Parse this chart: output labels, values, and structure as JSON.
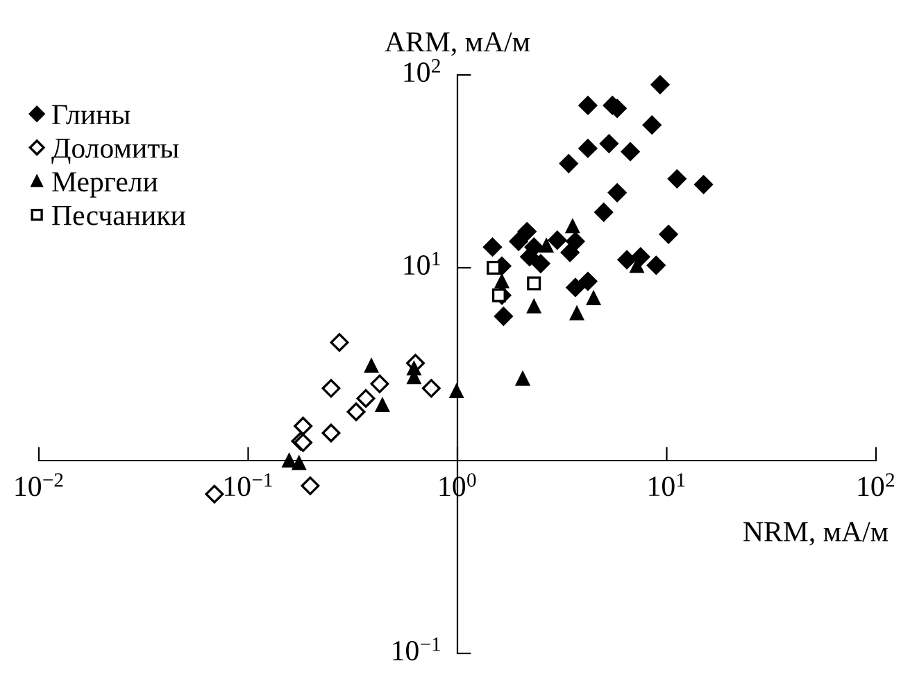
{
  "chart_data": {
    "type": "scatter",
    "xlabel": "NRM, мА/м",
    "ylabel": "ARM, мА/м",
    "log": "xy",
    "xlim": [
      0.01,
      100
    ],
    "ylim": [
      0.1,
      100
    ],
    "xticks": [
      {
        "value": 0.01,
        "label": "10$^{−2}$"
      },
      {
        "value": 0.1,
        "label": "10$^{−1}$"
      },
      {
        "value": 1,
        "label": "10$^{0}$"
      },
      {
        "value": 10,
        "label": "10$^{1}$"
      },
      {
        "value": 100,
        "label": "10$^{2}$"
      }
    ],
    "yticks": [
      {
        "value": 0.1,
        "label": "10$^{−1}$"
      },
      {
        "value": 10,
        "label": "10$^{1}$"
      },
      {
        "value": 100,
        "label": "10$^{2}$"
      }
    ],
    "grid": false,
    "legend": "top left",
    "series": [
      {
        "name": "Глины",
        "color": "#000000",
        "marker": "diamond",
        "x": [
          9.3,
          4.2,
          5.5,
          5.8,
          8.5,
          4.2,
          5.3,
          6.7,
          3.4,
          11.2,
          15,
          5.8,
          5.0,
          10.2,
          1.47,
          2.15,
          1.96,
          2.32,
          2.21,
          2.5,
          3.0,
          3.45,
          3.66,
          6.45,
          7.5,
          8.9,
          1.63,
          4.2,
          3.66,
          1.63,
          1.66
        ],
        "values": [
          89,
          69.5,
          69.5,
          67,
          55,
          41.6,
          44,
          40,
          34.7,
          28.9,
          27,
          24.5,
          19.4,
          14.9,
          12.8,
          15.4,
          13.7,
          12.8,
          11.4,
          10.5,
          13.9,
          12,
          13.7,
          11.0,
          11.4,
          10.3,
          10.2,
          8.5,
          7.9,
          7.2,
          5.6
        ]
      },
      {
        "name": "Доломиты",
        "color": "#000000",
        "marker": "diamond-open",
        "x": [
          0.273,
          0.63,
          0.425,
          0.249,
          0.365,
          0.328,
          0.75,
          0.183,
          0.178,
          0.183,
          0.249,
          0.198,
          0.069
        ],
        "values": [
          4.1,
          3.2,
          2.5,
          2.37,
          2.1,
          1.79,
          2.37,
          1.51,
          1.26,
          1.24,
          1.39,
          0.74,
          0.67
        ]
      },
      {
        "name": "Мергели",
        "color": "#000000",
        "marker": "triangle",
        "x": [
          0.388,
          0.438,
          0.62,
          0.62,
          0.99,
          0.157,
          0.175,
          2.05,
          2.32,
          3.72,
          4.47,
          7.2,
          3.55,
          2.66,
          1.63
        ],
        "values": [
          3.1,
          1.94,
          3.0,
          2.7,
          2.29,
          1.0,
          0.97,
          2.66,
          6.3,
          5.8,
          6.95,
          10.2,
          16.4,
          13,
          8.5
        ]
      },
      {
        "name": "Песчаники",
        "color": "#000000",
        "marker": "square-open",
        "x": [
          1.49,
          2.32,
          1.58
        ],
        "values": [
          10.0,
          8.3,
          7.2
        ]
      }
    ]
  }
}
